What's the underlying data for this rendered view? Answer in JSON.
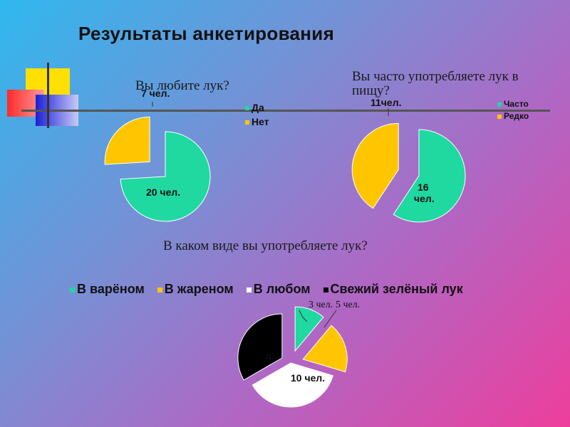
{
  "slide": {
    "title": "Результаты анкетирования"
  },
  "colors": {
    "green": "#1fd9a0",
    "yellow": "#ffc600",
    "white": "#ffffff",
    "black": "#000000"
  },
  "chart_data": [
    {
      "type": "pie",
      "title": "Вы любите лук?",
      "categories": [
        "Да",
        "Нет"
      ],
      "values": [
        20,
        7
      ],
      "data_labels": [
        "20 чел.",
        "7 чел."
      ],
      "legend": "right"
    },
    {
      "type": "pie",
      "title": "Вы часто употребляете лук в пищу?",
      "categories": [
        "Часто",
        "Редко"
      ],
      "values": [
        16,
        11
      ],
      "data_labels": [
        "16 чел.",
        "11чел."
      ],
      "legend": "right"
    },
    {
      "type": "pie",
      "title": "В каком виде вы употребляете лук?",
      "categories": [
        "В варёном",
        "В жареном",
        "В любом",
        "Свежий зелёный лук"
      ],
      "values": [
        3,
        5,
        10,
        9
      ],
      "data_labels": [
        "3 чел.",
        "5 чел.",
        "10 чел.",
        "л."
      ],
      "legend": "top"
    }
  ]
}
